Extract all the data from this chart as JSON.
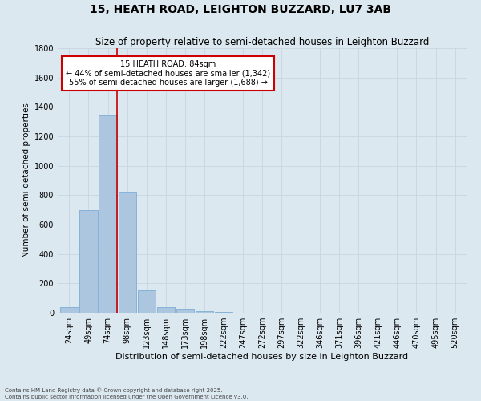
{
  "title": "15, HEATH ROAD, LEIGHTON BUZZARD, LU7 3AB",
  "subtitle": "Size of property relative to semi-detached houses in Leighton Buzzard",
  "xlabel": "Distribution of semi-detached houses by size in Leighton Buzzard",
  "ylabel": "Number of semi-detached properties",
  "categories": [
    "24sqm",
    "49sqm",
    "74sqm",
    "98sqm",
    "123sqm",
    "148sqm",
    "173sqm",
    "198sqm",
    "222sqm",
    "247sqm",
    "272sqm",
    "297sqm",
    "322sqm",
    "346sqm",
    "371sqm",
    "396sqm",
    "421sqm",
    "446sqm",
    "470sqm",
    "495sqm",
    "520sqm"
  ],
  "values": [
    40,
    700,
    1340,
    820,
    155,
    40,
    25,
    10,
    5,
    0,
    0,
    0,
    0,
    0,
    0,
    0,
    0,
    0,
    0,
    0,
    0
  ],
  "bar_color": "#adc6e0",
  "bar_edge_color": "#7aadd4",
  "annotation_text": "15 HEATH ROAD: 84sqm\n← 44% of semi-detached houses are smaller (1,342)\n55% of semi-detached houses are larger (1,688) →",
  "annotation_box_color": "#ffffff",
  "annotation_box_edge_color": "#cc0000",
  "annotation_text_color": "#000000",
  "vline_color": "#cc0000",
  "grid_color": "#c8d4e0",
  "background_color": "#dce8f0",
  "ylim": [
    0,
    1800
  ],
  "yticks": [
    0,
    200,
    400,
    600,
    800,
    1000,
    1200,
    1400,
    1600,
    1800
  ],
  "footnote": "Contains HM Land Registry data © Crown copyright and database right 2025.\nContains public sector information licensed under the Open Government Licence v3.0.",
  "title_fontsize": 10,
  "subtitle_fontsize": 8.5,
  "xlabel_fontsize": 8,
  "ylabel_fontsize": 7.5,
  "tick_fontsize": 7,
  "annot_fontsize": 7,
  "footnote_fontsize": 5
}
